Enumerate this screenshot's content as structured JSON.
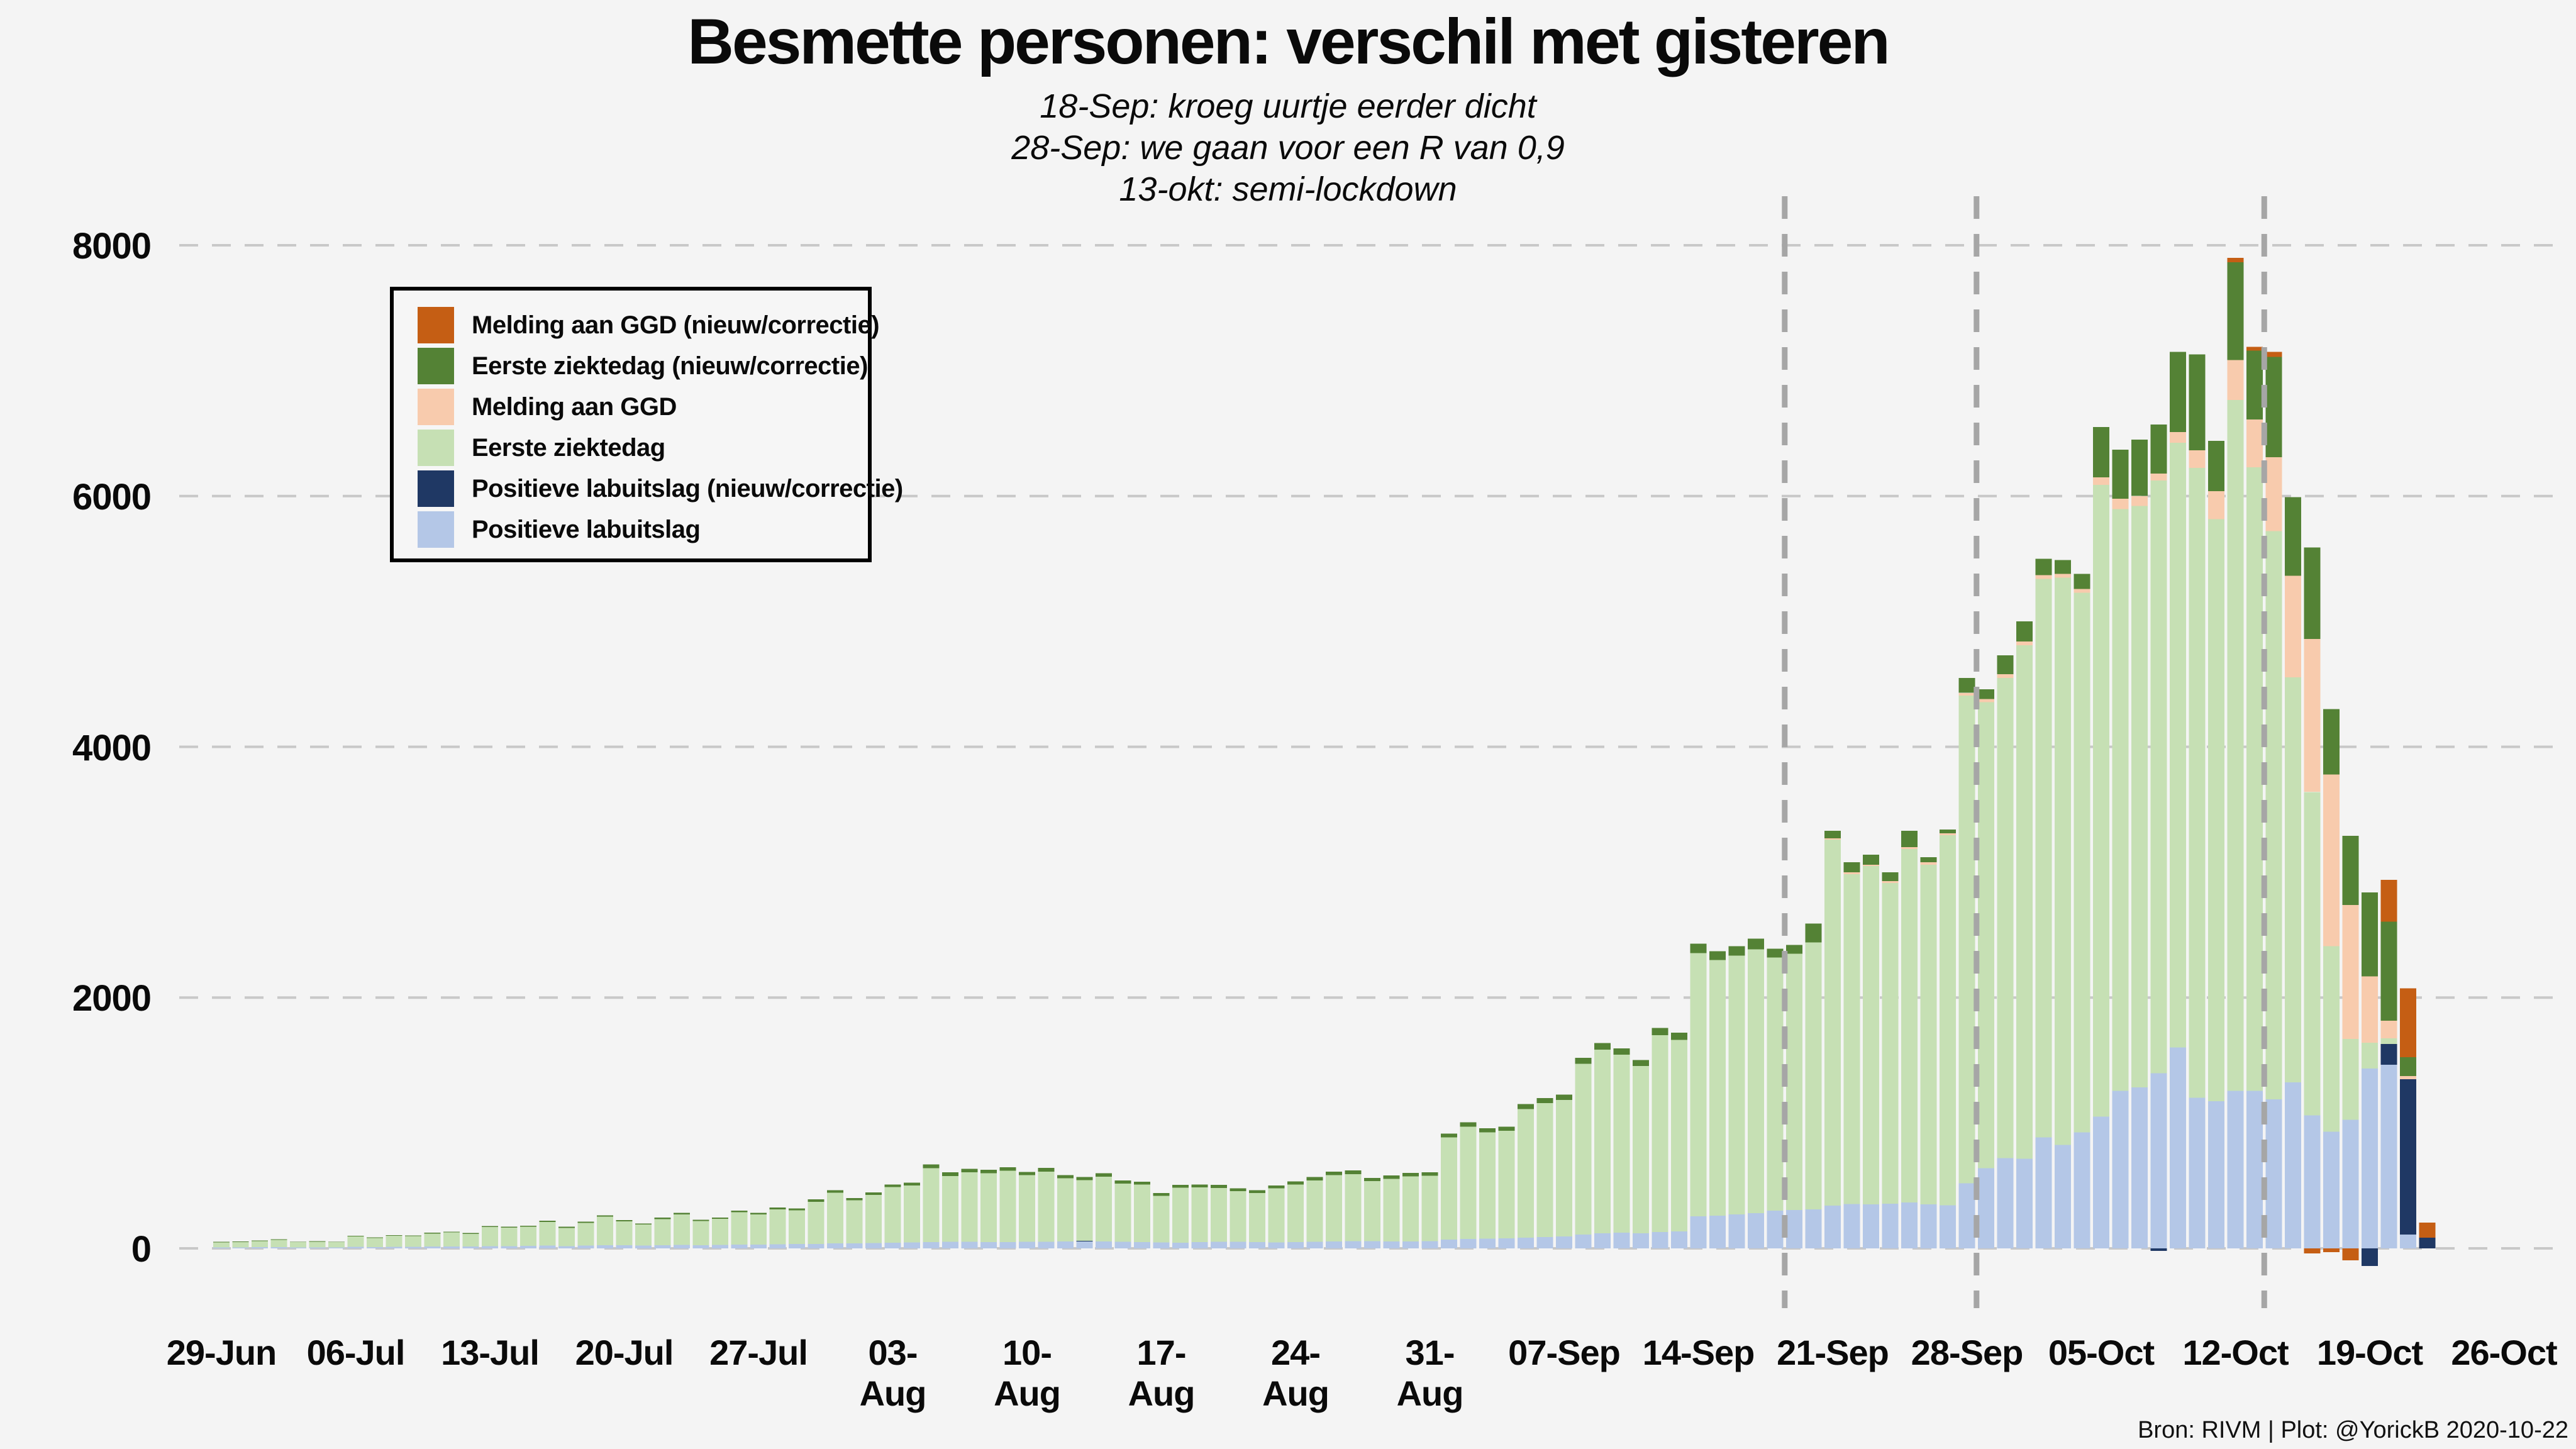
{
  "title": "Besmette personen: verschil met gisteren",
  "subtitle_lines": [
    "18-Sep: kroeg uurtje eerder dicht",
    "28-Sep: we gaan voor een R van 0,9",
    "13-okt: semi-lockdown"
  ],
  "attribution": "Bron: RIVM | Plot: @YorickB  2020-10-22",
  "colors": {
    "background": "#f4f4f4",
    "gridline": "#c8c8c8",
    "event_line": "#a6a6a6",
    "series": {
      "melding_ggd_new": "#c55e14",
      "eerste_ziektedag_new": "#548235",
      "melding_ggd": "#f8cbad",
      "eerste_ziektedag": "#c6e0b4",
      "pos_lab_new": "#1f3864",
      "pos_lab": "#b4c7e7"
    }
  },
  "legend": {
    "items": [
      {
        "key": "melding_ggd_new",
        "label": "Melding aan GGD (nieuw/correctie)"
      },
      {
        "key": "eerste_ziektedag_new",
        "label": "Eerste ziektedag (nieuw/correctie)"
      },
      {
        "key": "melding_ggd",
        "label": "Melding aan GGD"
      },
      {
        "key": "eerste_ziektedag",
        "label": "Eerste ziektedag"
      },
      {
        "key": "pos_lab_new",
        "label": "Positieve labuitslag (nieuw/correctie)"
      },
      {
        "key": "pos_lab",
        "label": "Positieve labuitslag"
      }
    ]
  },
  "chart_data": {
    "type": "bar",
    "stacked": true,
    "title": "Besmette personen: verschil met gisteren",
    "ylabel": "",
    "xlabel": "",
    "ylim": [
      -500,
      8400
    ],
    "grid": "dashed-horizontal",
    "legend_position": "upper-left-box",
    "y_ticks": [
      0,
      2000,
      4000,
      6000,
      8000
    ],
    "x_tick_labels": [
      "29-Jun",
      "06-Jul",
      "13-Jul",
      "20-Jul",
      "27-Jul",
      "03-Aug",
      "10-Aug",
      "17-Aug",
      "24-Aug",
      "31-Aug",
      "07-Sep",
      "14-Sep",
      "21-Sep",
      "28-Sep",
      "05-Oct",
      "12-Oct",
      "19-Oct",
      "26-Oct"
    ],
    "x_tick_day_step": 7,
    "event_lines": [
      {
        "date": "18-Sep",
        "day_index": 81
      },
      {
        "date": "28-Sep",
        "day_index": 91
      },
      {
        "date": "13-okt",
        "day_index": 106
      }
    ],
    "stack_order_bottom_to_top": [
      "pos_lab",
      "pos_lab_new",
      "eerste_ziektedag",
      "melding_ggd",
      "eerste_ziektedag_new",
      "melding_ggd_new"
    ],
    "columns": [
      "date",
      "pos_lab",
      "pos_lab_new",
      "eerste_ziektedag",
      "melding_ggd",
      "eerste_ziektedag_new",
      "melding_ggd_new",
      "neg_pos_lab_new",
      "neg_melding_ggd_new"
    ],
    "days": [
      [
        "29-Jun",
        8,
        0,
        40,
        0,
        4,
        0,
        0,
        0
      ],
      [
        "30-Jun",
        8,
        0,
        44,
        0,
        3,
        0,
        0,
        0
      ],
      [
        "01-Jul",
        10,
        0,
        48,
        0,
        4,
        0,
        0,
        0
      ],
      [
        "02-Jul",
        10,
        0,
        58,
        0,
        4,
        0,
        0,
        0
      ],
      [
        "03-Jul",
        8,
        0,
        42,
        0,
        3,
        0,
        0,
        0
      ],
      [
        "04-Jul",
        8,
        0,
        46,
        0,
        3,
        0,
        0,
        0
      ],
      [
        "05-Jul",
        8,
        0,
        42,
        0,
        3,
        0,
        0,
        0
      ],
      [
        "06-Jul",
        12,
        0,
        84,
        0,
        5,
        0,
        0,
        0
      ],
      [
        "07-Jul",
        10,
        0,
        73,
        0,
        4,
        0,
        0,
        0
      ],
      [
        "08-Jul",
        12,
        0,
        88,
        0,
        5,
        0,
        0,
        0
      ],
      [
        "09-Jul",
        12,
        0,
        85,
        0,
        5,
        0,
        0,
        0
      ],
      [
        "10-Jul",
        14,
        0,
        105,
        0,
        6,
        0,
        0,
        0
      ],
      [
        "11-Jul",
        15,
        0,
        112,
        0,
        6,
        0,
        0,
        0
      ],
      [
        "12-Jul",
        14,
        0,
        102,
        0,
        6,
        0,
        0,
        0
      ],
      [
        "13-Jul",
        18,
        0,
        152,
        0,
        8,
        0,
        0,
        0
      ],
      [
        "14-Jul",
        18,
        0,
        148,
        0,
        8,
        0,
        0,
        0
      ],
      [
        "15-Jul",
        20,
        0,
        153,
        0,
        8,
        0,
        0,
        0
      ],
      [
        "16-Jul",
        22,
        0,
        188,
        0,
        10,
        0,
        0,
        0
      ],
      [
        "17-Jul",
        18,
        0,
        146,
        0,
        8,
        0,
        0,
        0
      ],
      [
        "18-Jul",
        22,
        0,
        180,
        0,
        10,
        0,
        0,
        0
      ],
      [
        "19-Jul",
        25,
        0,
        228,
        0,
        10,
        0,
        0,
        0
      ],
      [
        "20-Jul",
        25,
        0,
        190,
        0,
        10,
        0,
        0,
        0
      ],
      [
        "21-Jul",
        22,
        0,
        168,
        0,
        8,
        0,
        0,
        0
      ],
      [
        "22-Jul",
        25,
        0,
        208,
        0,
        12,
        0,
        0,
        0
      ],
      [
        "23-Jul",
        28,
        0,
        244,
        0,
        12,
        0,
        0,
        0
      ],
      [
        "24-Jul",
        25,
        0,
        192,
        0,
        10,
        0,
        0,
        0
      ],
      [
        "25-Jul",
        28,
        0,
        208,
        0,
        10,
        0,
        0,
        0
      ],
      [
        "26-Jul",
        30,
        0,
        258,
        0,
        14,
        0,
        0,
        0
      ],
      [
        "27-Jul",
        30,
        0,
        242,
        0,
        12,
        0,
        0,
        0
      ],
      [
        "28-Jul",
        32,
        0,
        280,
        0,
        15,
        0,
        0,
        0
      ],
      [
        "29-Jul",
        34,
        0,
        270,
        0,
        14,
        0,
        0,
        0
      ],
      [
        "30-Jul",
        36,
        0,
        336,
        0,
        18,
        0,
        0,
        0
      ],
      [
        "31-Jul",
        40,
        0,
        404,
        0,
        20,
        0,
        0,
        0
      ],
      [
        "01-Aug",
        40,
        0,
        343,
        0,
        18,
        0,
        0,
        0
      ],
      [
        "02-Aug",
        42,
        0,
        385,
        0,
        20,
        0,
        0,
        0
      ],
      [
        "03-Aug",
        45,
        0,
        443,
        0,
        22,
        0,
        0,
        0
      ],
      [
        "04-Aug",
        48,
        0,
        454,
        0,
        22,
        0,
        0,
        0
      ],
      [
        "05-Aug",
        50,
        0,
        590,
        0,
        30,
        0,
        0,
        0
      ],
      [
        "06-Aug",
        52,
        0,
        524,
        0,
        30,
        0,
        0,
        0
      ],
      [
        "07-Aug",
        52,
        0,
        556,
        0,
        27,
        0,
        0,
        0
      ],
      [
        "08-Aug",
        50,
        0,
        550,
        0,
        27,
        0,
        0,
        0
      ],
      [
        "09-Aug",
        50,
        0,
        570,
        0,
        27,
        0,
        0,
        0
      ],
      [
        "10-Aug",
        52,
        0,
        532,
        0,
        26,
        0,
        0,
        0
      ],
      [
        "11-Aug",
        52,
        0,
        561,
        0,
        28,
        0,
        0,
        0
      ],
      [
        "12-Aug",
        55,
        0,
        504,
        0,
        25,
        0,
        0,
        0
      ],
      [
        "13-Aug",
        55,
        6,
        484,
        0,
        25,
        0,
        0,
        0
      ],
      [
        "14-Aug",
        55,
        0,
        518,
        0,
        26,
        0,
        0,
        0
      ],
      [
        "15-Aug",
        52,
        0,
        465,
        0,
        24,
        0,
        0,
        0
      ],
      [
        "16-Aug",
        50,
        0,
        458,
        0,
        24,
        0,
        0,
        0
      ],
      [
        "17-Aug",
        48,
        0,
        371,
        0,
        22,
        0,
        0,
        0
      ],
      [
        "18-Aug",
        45,
        0,
        438,
        0,
        23,
        0,
        0,
        0
      ],
      [
        "19-Aug",
        50,
        0,
        436,
        0,
        24,
        0,
        0,
        0
      ],
      [
        "20-Aug",
        52,
        0,
        430,
        0,
        24,
        0,
        0,
        0
      ],
      [
        "21-Aug",
        52,
        0,
        404,
        0,
        23,
        0,
        0,
        0
      ],
      [
        "22-Aug",
        50,
        0,
        392,
        0,
        22,
        0,
        0,
        0
      ],
      [
        "23-Aug",
        48,
        0,
        430,
        0,
        24,
        0,
        0,
        0
      ],
      [
        "24-Aug",
        50,
        0,
        460,
        0,
        25,
        0,
        0,
        0
      ],
      [
        "25-Aug",
        52,
        0,
        490,
        0,
        27,
        0,
        0,
        0
      ],
      [
        "26-Aug",
        55,
        0,
        530,
        0,
        28,
        0,
        0,
        0
      ],
      [
        "27-Aug",
        58,
        0,
        533,
        0,
        30,
        0,
        0,
        0
      ],
      [
        "28-Aug",
        58,
        0,
        478,
        0,
        27,
        0,
        0,
        0
      ],
      [
        "29-Aug",
        55,
        0,
        500,
        0,
        27,
        0,
        0,
        0
      ],
      [
        "30-Aug",
        55,
        0,
        519,
        0,
        28,
        0,
        0,
        0
      ],
      [
        "31-Aug",
        58,
        0,
        521,
        0,
        28,
        0,
        0,
        0
      ],
      [
        "01-Sep",
        70,
        0,
        816,
        0,
        30,
        0,
        0,
        0
      ],
      [
        "02-Sep",
        75,
        0,
        896,
        0,
        35,
        0,
        0,
        0
      ],
      [
        "03-Sep",
        78,
        0,
        848,
        0,
        32,
        0,
        0,
        0
      ],
      [
        "04-Sep",
        80,
        0,
        857,
        0,
        34,
        0,
        0,
        0
      ],
      [
        "05-Sep",
        85,
        0,
        1027,
        0,
        38,
        0,
        0,
        0
      ],
      [
        "06-Sep",
        90,
        0,
        1068,
        0,
        40,
        0,
        0,
        0
      ],
      [
        "07-Sep",
        95,
        0,
        1089,
        0,
        42,
        0,
        0,
        0
      ],
      [
        "08-Sep",
        110,
        0,
        1363,
        0,
        48,
        0,
        0,
        0
      ],
      [
        "09-Sep",
        120,
        0,
        1466,
        0,
        52,
        0,
        0,
        0
      ],
      [
        "10-Sep",
        125,
        0,
        1419,
        0,
        50,
        0,
        0,
        0
      ],
      [
        "11-Sep",
        120,
        0,
        1334,
        0,
        48,
        0,
        0,
        0
      ],
      [
        "12-Sep",
        130,
        0,
        1570,
        0,
        57,
        0,
        0,
        0
      ],
      [
        "13-Sep",
        135,
        0,
        1529,
        0,
        56,
        0,
        0,
        0
      ],
      [
        "14-Sep",
        255,
        0,
        2100,
        0,
        75,
        0,
        0,
        0
      ],
      [
        "15-Sep",
        260,
        0,
        2040,
        0,
        70,
        0,
        0,
        0
      ],
      [
        "16-Sep",
        270,
        0,
        2065,
        0,
        75,
        0,
        0,
        0
      ],
      [
        "17-Sep",
        280,
        0,
        2105,
        0,
        85,
        0,
        0,
        0
      ],
      [
        "18-Sep",
        300,
        0,
        2020,
        0,
        70,
        0,
        0,
        0
      ],
      [
        "19-Sep",
        305,
        0,
        2045,
        0,
        70,
        0,
        0,
        0
      ],
      [
        "20-Sep",
        310,
        0,
        2130,
        0,
        150,
        0,
        0,
        0
      ],
      [
        "21-Sep",
        340,
        0,
        2920,
        10,
        60,
        0,
        0,
        0
      ],
      [
        "22-Sep",
        355,
        0,
        2630,
        15,
        80,
        0,
        0,
        0
      ],
      [
        "23-Sep",
        350,
        0,
        2700,
        10,
        80,
        0,
        0,
        0
      ],
      [
        "24-Sep",
        355,
        0,
        2560,
        15,
        70,
        0,
        0,
        0
      ],
      [
        "25-Sep",
        365,
        0,
        2820,
        15,
        130,
        0,
        0,
        0
      ],
      [
        "26-Sep",
        350,
        0,
        2710,
        20,
        40,
        0,
        0,
        0
      ],
      [
        "27-Sep",
        345,
        0,
        2950,
        15,
        30,
        0,
        0,
        0
      ],
      [
        "28-Sep",
        520,
        0,
        3890,
        20,
        120,
        0,
        0,
        0
      ],
      [
        "29-Sep",
        640,
        0,
        3715,
        25,
        80,
        0,
        0,
        0
      ],
      [
        "30-Sep",
        720,
        0,
        3830,
        30,
        150,
        0,
        0,
        0
      ],
      [
        "01-Oct",
        715,
        0,
        4095,
        30,
        160,
        0,
        0,
        0
      ],
      [
        "02-Oct",
        885,
        0,
        4455,
        30,
        130,
        0,
        0,
        0
      ],
      [
        "03-Oct",
        825,
        0,
        4525,
        30,
        110,
        0,
        0,
        0
      ],
      [
        "04-Oct",
        925,
        0,
        4305,
        30,
        120,
        0,
        0,
        0
      ],
      [
        "05-Oct",
        1050,
        0,
        5040,
        60,
        400,
        0,
        0,
        0
      ],
      [
        "06-Oct",
        1257,
        0,
        4638,
        85,
        390,
        0,
        0,
        0
      ],
      [
        "07-Oct",
        1285,
        0,
        4635,
        80,
        450,
        0,
        0,
        0
      ],
      [
        "08-Oct",
        1396,
        0,
        4729,
        55,
        390,
        0,
        -20,
        0
      ],
      [
        "09-Oct",
        1603,
        0,
        4822,
        85,
        640,
        0,
        0,
        0
      ],
      [
        "10-Oct",
        1201,
        0,
        5024,
        140,
        765,
        0,
        0,
        0
      ],
      [
        "11-Oct",
        1173,
        0,
        4642,
        225,
        400,
        0,
        0,
        0
      ],
      [
        "12-Oct",
        1257,
        0,
        5508,
        320,
        780,
        35,
        0,
        0
      ],
      [
        "13-Oct",
        1257,
        0,
        4973,
        380,
        550,
        30,
        0,
        0
      ],
      [
        "14-Oct",
        1190,
        0,
        4530,
        590,
        800,
        40,
        0,
        0
      ],
      [
        "15-Oct",
        1325,
        0,
        3230,
        810,
        625,
        0,
        0,
        0
      ],
      [
        "16-Oct",
        1060,
        0,
        2580,
        1220,
        730,
        0,
        0,
        -40
      ],
      [
        "17-Oct",
        930,
        0,
        1480,
        1370,
        520,
        0,
        0,
        -30
      ],
      [
        "18-Oct",
        1025,
        0,
        645,
        1070,
        550,
        0,
        0,
        -95
      ],
      [
        "19-Oct",
        1435,
        0,
        205,
        530,
        670,
        0,
        -140,
        0
      ],
      [
        "20-Oct",
        1465,
        165,
        45,
        140,
        790,
        335,
        0,
        0
      ],
      [
        "21-Oct",
        110,
        1240,
        0,
        25,
        150,
        550,
        0,
        0
      ],
      [
        "22-Oct",
        0,
        85,
        0,
        0,
        0,
        120,
        0,
        0
      ]
    ]
  }
}
